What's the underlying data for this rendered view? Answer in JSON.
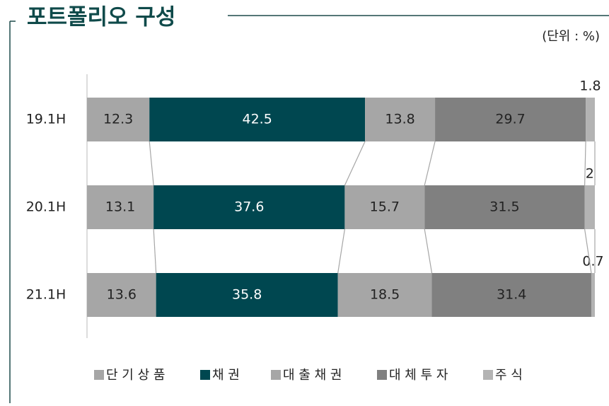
{
  "chart_data": {
    "type": "stacked-bar",
    "title": "포트폴리오 구성",
    "unit": "(단위 : %)",
    "categories": [
      "19.1H",
      "20.1H",
      "21.1H"
    ],
    "series": [
      {
        "name": "단 기 상 품",
        "color": "#a6a6a6",
        "values": [
          12.3,
          13.1,
          13.6
        ]
      },
      {
        "name": "채 권",
        "color": "#004750",
        "values": [
          42.5,
          37.6,
          35.8
        ]
      },
      {
        "name": "대 출 채 권",
        "color": "#a6a6a6",
        "values": [
          13.8,
          15.7,
          18.5
        ]
      },
      {
        "name": "대 체 투 자",
        "color": "#808080",
        "values": [
          29.7,
          31.5,
          31.4
        ]
      },
      {
        "name": "주 식",
        "color": "#b3b3b3",
        "values": [
          1.8,
          2.0,
          0.7
        ]
      }
    ]
  }
}
